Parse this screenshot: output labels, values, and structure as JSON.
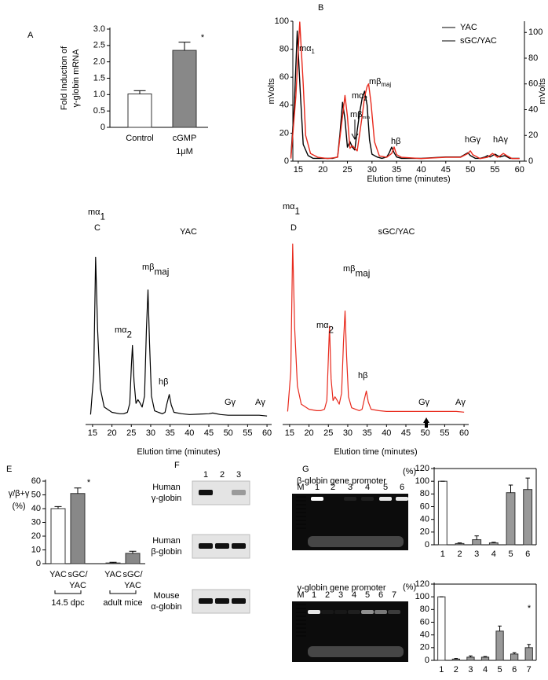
{
  "chart_data": [
    {
      "type": "bar",
      "panel": "A",
      "ylabel": [
        "Fold Induction of",
        "γ-globin mRNA"
      ],
      "categories": [
        [
          "Control"
        ],
        [
          "cGMP",
          "1μM"
        ]
      ],
      "values": [
        1.02,
        2.35
      ],
      "errors": [
        0.1,
        0.25
      ],
      "colors": [
        "#ffffff",
        "#888888"
      ],
      "ylim": [
        0,
        3
      ],
      "yticks": [
        0,
        0.5,
        {
          "value": 1,
          "label": "1.0"
        },
        1.5,
        {
          "value": 2,
          "label": "2.0"
        },
        2.5,
        {
          "value": 3,
          "label": "3.0"
        }
      ],
      "annotations": [
        "*"
      ]
    },
    {
      "type": "line",
      "panel": "B",
      "ylabel": "mVolts",
      "y2label": "mVolts",
      "xlabel": "Elution time (minutes)",
      "xlim": [
        13.9,
        61
      ],
      "ylim": [
        0,
        100
      ],
      "y2lim": [
        0,
        108.7
      ],
      "xticks": [
        15,
        20,
        25,
        30,
        35,
        40,
        45,
        50,
        55,
        60
      ],
      "yticks": [
        0,
        20,
        40,
        60,
        80,
        100
      ],
      "y2ticks": [
        0,
        20,
        40,
        60,
        80,
        100
      ],
      "legend": "upper right",
      "series": [
        {
          "name": "YAC",
          "color": "#000000",
          "x": [
            13.5,
            14.2,
            14.8,
            15.4,
            16,
            17,
            18,
            20,
            22,
            23,
            23.5,
            24,
            24.5,
            25,
            25.5,
            26,
            26.5,
            27,
            27.5,
            28,
            28.5,
            29,
            29.5,
            30,
            31,
            32,
            33,
            33.5,
            34,
            34.5,
            35,
            36,
            40,
            45,
            48,
            49,
            49.5,
            50,
            51,
            52,
            53,
            53.5,
            54,
            55,
            55.5,
            56,
            57,
            57.5,
            58,
            60
          ],
          "values": [
            3,
            40,
            93,
            50,
            12,
            4,
            2,
            2,
            2,
            3,
            20,
            42,
            30,
            10,
            14,
            10,
            8,
            22,
            35,
            45,
            50,
            40,
            15,
            5,
            3,
            2,
            3,
            6,
            10,
            6,
            3,
            2,
            2,
            3,
            3,
            5,
            6,
            4,
            2,
            2,
            3,
            4,
            3,
            5,
            4,
            3,
            4,
            3,
            2,
            2
          ]
        },
        {
          "name": "sGC/YAC",
          "color": "#e8291c",
          "axis": "y2",
          "x": [
            13.5,
            14.5,
            15.3,
            16,
            16.5,
            17.5,
            19,
            21,
            23,
            24,
            24.5,
            25,
            25.5,
            26,
            26.5,
            27,
            28,
            28.5,
            29,
            29.3,
            29.8,
            30.5,
            31.5,
            33,
            34,
            34.5,
            35,
            36,
            40,
            45,
            48,
            49.5,
            50,
            50.5,
            52,
            53.5,
            54.5,
            55.5,
            56,
            56.7,
            57.5,
            58.5,
            60
          ],
          "values": [
            2,
            50,
            108,
            60,
            20,
            6,
            3,
            2,
            3,
            35,
            51,
            35,
            10,
            12,
            10,
            8,
            35,
            50,
            58,
            60,
            45,
            15,
            4,
            3,
            6,
            11,
            5,
            3,
            2,
            3,
            3,
            6,
            8,
            5,
            2,
            3,
            6,
            3,
            4,
            6,
            4,
            2,
            2
          ]
        }
      ],
      "annotations": [
        {
          "text": "mα",
          "sub": "1"
        },
        {
          "text": "mα",
          "sub": "2"
        },
        {
          "text": "mβ",
          "sub": "min"
        },
        {
          "text": "mβ",
          "sub": "maj"
        },
        {
          "text": "hβ"
        },
        {
          "text": "hGγ"
        },
        {
          "text": "hAγ"
        }
      ]
    },
    {
      "type": "line",
      "panel": "C",
      "title": "YAC",
      "xlabel": "Elution time (minutes)",
      "xlim": [
        13.2,
        61.2
      ],
      "ylim": [
        0,
        230
      ],
      "xticks": [
        15,
        20,
        25,
        30,
        35,
        40,
        45,
        50,
        55,
        60
      ],
      "series": [
        {
          "color": "#000000",
          "x": [
            14.5,
            15.3,
            15.8,
            16.3,
            17,
            18,
            20,
            22,
            23,
            24,
            24.6,
            25,
            25.3,
            25.7,
            26.2,
            26.7,
            27.3,
            27.8,
            28.4,
            28.9,
            29.3,
            29.7,
            30.2,
            31,
            32,
            33,
            33.7,
            34.2,
            34.8,
            35.3,
            36,
            38,
            40,
            45,
            46,
            48,
            50,
            52,
            55,
            58,
            60
          ],
          "values": [
            5,
            60,
            217,
            120,
            40,
            15,
            8,
            6,
            6,
            8,
            20,
            70,
            98,
            50,
            20,
            25,
            20,
            15,
            30,
            120,
            173,
            100,
            30,
            10,
            8,
            6,
            8,
            20,
            32,
            18,
            8,
            6,
            5,
            6,
            7,
            5,
            4,
            4,
            4,
            4,
            3
          ]
        }
      ],
      "annotations": [
        {
          "text": "mα",
          "sub": "1"
        },
        {
          "text": "mα",
          "sub": "2"
        },
        {
          "text": "mβ",
          "sub": "maj"
        },
        {
          "text": "hβ"
        },
        {
          "text": "Gγ"
        },
        {
          "text": "Aγ"
        }
      ]
    },
    {
      "type": "line",
      "panel": "D",
      "title": "sGC/YAC",
      "xlabel": "Elution time (minutes)",
      "xlim": [
        13.2,
        61.2
      ],
      "ylim": [
        0,
        230
      ],
      "xticks": [
        15,
        20,
        25,
        30,
        35,
        40,
        45,
        50,
        55,
        60
      ],
      "series": [
        {
          "color": "#e8291c",
          "x": [
            14.5,
            15.3,
            15.8,
            16.3,
            17,
            18,
            20,
            22,
            23,
            24,
            24.6,
            25,
            25.3,
            25.7,
            26.2,
            26.7,
            27.3,
            27.8,
            28.4,
            28.9,
            29.3,
            29.7,
            30.2,
            31,
            32,
            33,
            33.7,
            34.2,
            34.8,
            35.3,
            36,
            38,
            40,
            45,
            46,
            48,
            50,
            52,
            55,
            58,
            60
          ],
          "values": [
            5,
            60,
            235,
            120,
            40,
            15,
            8,
            6,
            6,
            8,
            20,
            80,
            122,
            50,
            20,
            25,
            20,
            15,
            30,
            100,
            143,
            80,
            25,
            10,
            8,
            6,
            8,
            20,
            33,
            18,
            8,
            6,
            5,
            5,
            5,
            5,
            5,
            5,
            5,
            5,
            4
          ]
        }
      ],
      "annotations": [
        {
          "text": "mα",
          "sub": "1"
        },
        {
          "text": "mα",
          "sub": "2"
        },
        {
          "text": "mβ",
          "sub": "maj"
        },
        {
          "text": "hβ"
        },
        {
          "text": "Gγ"
        },
        {
          "text": "Aγ"
        }
      ]
    },
    {
      "type": "bar",
      "panel": "E",
      "ylabel": [
        "γ/β+γ",
        "(%)"
      ],
      "categories": [
        [
          "YAC"
        ],
        [
          "sGC/",
          "YAC"
        ],
        [
          "YAC"
        ],
        [
          "sGC/",
          "YAC"
        ]
      ],
      "groups": [
        "14.5 dpc",
        "adult mice"
      ],
      "values": [
        40,
        51,
        0.5,
        7.5
      ],
      "errors": [
        1.5,
        4,
        0.5,
        1.5
      ],
      "colors": [
        "#ffffff",
        "#888888",
        "#ffffff",
        "#888888"
      ],
      "ylim": [
        0,
        60
      ],
      "yticks": [
        0,
        10,
        20,
        30,
        40,
        50,
        60
      ],
      "annotations": [
        "*"
      ]
    },
    {
      "type": "bar",
      "ylabel": "(%)",
      "categories": [
        "1",
        "2",
        "3",
        "4",
        "5",
        "6"
      ],
      "values": [
        100,
        2,
        8,
        3,
        82,
        87
      ],
      "errors": [
        0,
        1,
        6,
        1,
        12,
        18
      ],
      "colors": [
        "#ffffff",
        "#999999",
        "#999999",
        "#999999",
        "#999999",
        "#999999"
      ],
      "ylim": [
        0,
        120
      ],
      "yticks": [
        0,
        20,
        40,
        60,
        80,
        100,
        120
      ]
    },
    {
      "type": "bar",
      "ylabel": "(%)",
      "categories": [
        "1",
        "2",
        "3",
        "4",
        "5",
        "6",
        "7"
      ],
      "values": [
        100,
        2,
        5,
        5,
        46,
        10,
        20
      ],
      "errors": [
        0,
        1,
        2,
        1,
        8,
        2,
        5
      ],
      "colors": [
        "#ffffff",
        "#999999",
        "#999999",
        "#999999",
        "#999999",
        "#999999",
        "#999999"
      ],
      "ylim": [
        0,
        120
      ],
      "yticks": [
        0,
        20,
        40,
        60,
        80,
        100,
        120
      ],
      "annotations": [
        "*"
      ]
    }
  ],
  "gels": {
    "F": {
      "panel": "F",
      "lanes": [
        "1",
        "2",
        "3"
      ],
      "rows": [
        {
          "label": [
            "Human",
            "γ-globin"
          ]
        },
        {
          "label": [
            "Human",
            "β-globin"
          ]
        },
        {
          "label": [
            "Mouse",
            "α-globin"
          ]
        }
      ]
    },
    "G": {
      "panel": "G",
      "blots": [
        {
          "title": "β-globin gene promoter",
          "lanes": [
            "M",
            "1",
            "2",
            "3",
            "4",
            "5",
            "6"
          ]
        },
        {
          "title": "γ-globin gene promoter",
          "lanes": [
            "M",
            "1",
            "2",
            "3",
            "4",
            "5",
            "6",
            "7"
          ]
        }
      ]
    }
  }
}
